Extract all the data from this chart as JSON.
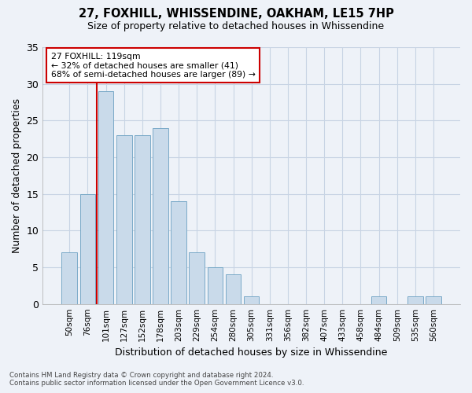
{
  "title": "27, FOXHILL, WHISSENDINE, OAKHAM, LE15 7HP",
  "subtitle": "Size of property relative to detached houses in Whissendine",
  "xlabel": "Distribution of detached houses by size in Whissendine",
  "ylabel": "Number of detached properties",
  "bin_labels": [
    "50sqm",
    "76sqm",
    "101sqm",
    "127sqm",
    "152sqm",
    "178sqm",
    "203sqm",
    "229sqm",
    "254sqm",
    "280sqm",
    "305sqm",
    "331sqm",
    "356sqm",
    "382sqm",
    "407sqm",
    "433sqm",
    "458sqm",
    "484sqm",
    "509sqm",
    "535sqm",
    "560sqm"
  ],
  "bar_values": [
    7,
    15,
    29,
    23,
    23,
    24,
    14,
    7,
    5,
    4,
    1,
    0,
    0,
    0,
    0,
    0,
    0,
    1,
    0,
    1,
    1
  ],
  "bar_color": "#c9daea",
  "bar_edge_color": "#7aaac8",
  "vline_x": 2.0,
  "annotation_line1": "27 FOXHILL: 119sqm",
  "annotation_line2": "← 32% of detached houses are smaller (41)",
  "annotation_line3": "68% of semi-detached houses are larger (89) →",
  "annotation_box_facecolor": "#ffffff",
  "annotation_box_edgecolor": "#cc0000",
  "vline_color": "#cc0000",
  "ylim": [
    0,
    35
  ],
  "yticks": [
    0,
    5,
    10,
    15,
    20,
    25,
    30,
    35
  ],
  "grid_color": "#c8d4e4",
  "background_color": "#eef2f8",
  "footer_line1": "Contains HM Land Registry data © Crown copyright and database right 2024.",
  "footer_line2": "Contains public sector information licensed under the Open Government Licence v3.0."
}
